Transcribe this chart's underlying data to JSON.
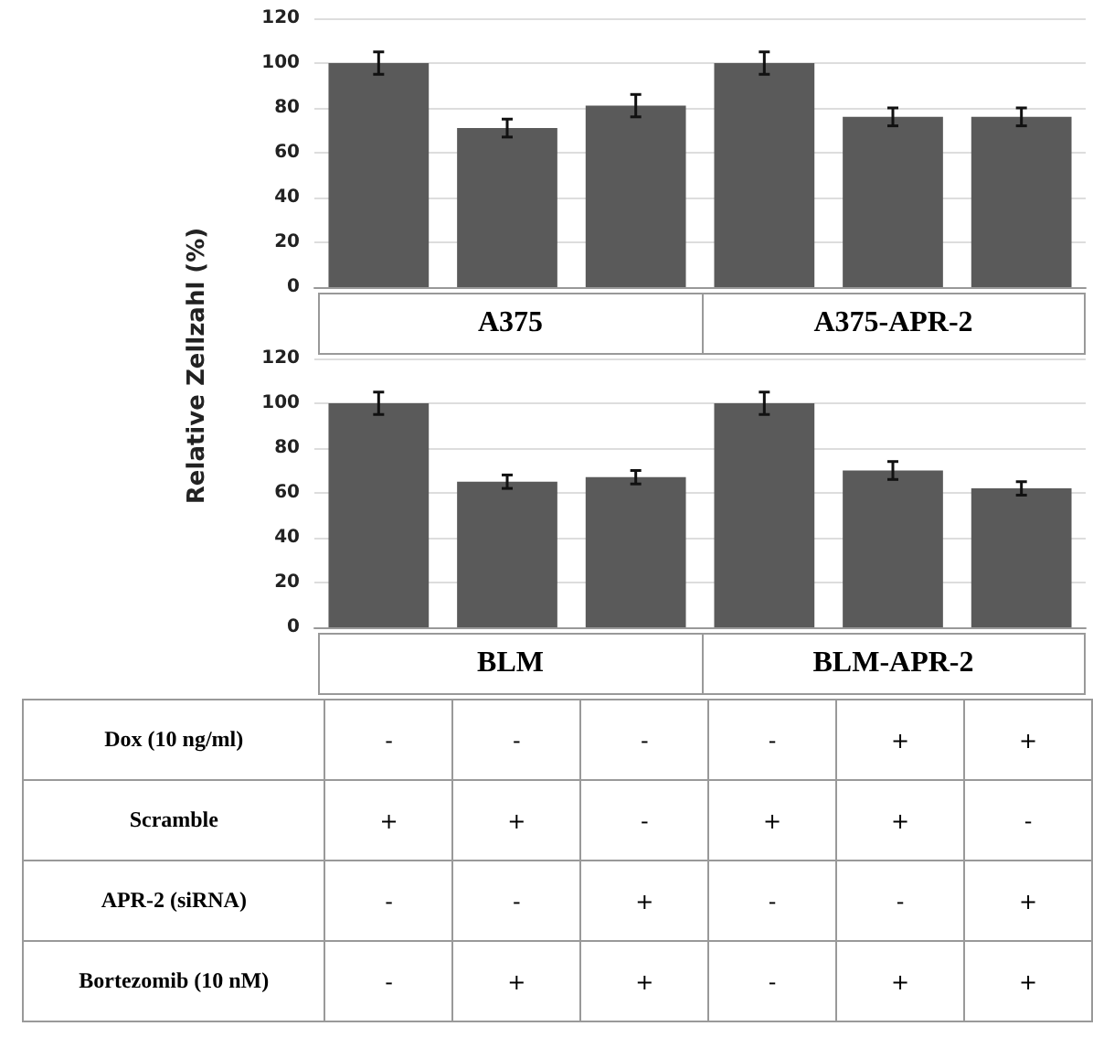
{
  "chart_data": [
    {
      "type": "bar",
      "ylabel": "Relative Zellzahl (%)",
      "categories": [
        null,
        null,
        null,
        null,
        null,
        null
      ],
      "series": [
        {
          "color": "#5a5a5a",
          "values": [
            100,
            71,
            81,
            100,
            76,
            76
          ],
          "errors": [
            5,
            4,
            5,
            5,
            4,
            4
          ]
        }
      ],
      "ylim": [
        0,
        120
      ],
      "yticks": [
        0,
        20,
        40,
        60,
        80,
        100,
        120
      ],
      "grid": "y",
      "annotations": [
        "A375",
        "A375-APR-2"
      ]
    },
    {
      "type": "bar",
      "categories": [
        null,
        null,
        null,
        null,
        null,
        null
      ],
      "series": [
        {
          "color": "#5a5a5a",
          "values": [
            100,
            65,
            67,
            100,
            70,
            62
          ],
          "errors": [
            5,
            3,
            3,
            5,
            4,
            3
          ]
        }
      ],
      "ylim": [
        0,
        120
      ],
      "yticks": [
        0,
        20,
        40,
        60,
        80,
        100,
        120
      ],
      "grid": "y",
      "annotations": [
        "BLM",
        "BLM-APR-2"
      ]
    },
    {
      "type": "other",
      "y_categories": [
        "Dox (10 ng/ml)",
        "Scramble",
        "APR-2 (siRNA)",
        "Bortezomib (10 nM)"
      ],
      "cell_labels": [
        [
          "-",
          "-",
          "-",
          "-",
          "+",
          "+"
        ],
        [
          "+",
          "+",
          "-",
          "+",
          "+",
          "-"
        ],
        [
          "-",
          "-",
          "+",
          "-",
          "-",
          "+"
        ],
        [
          "-",
          "+",
          "+",
          "-",
          "+",
          "+"
        ]
      ]
    }
  ]
}
